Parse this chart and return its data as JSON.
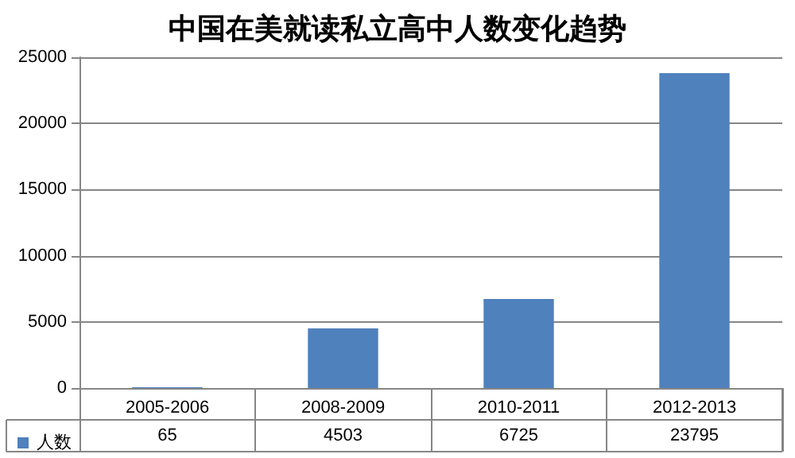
{
  "chart_data": {
    "type": "bar",
    "title": "中国在美就读私立高中人数变化趋势",
    "categories": [
      "2005-2006",
      "2008-2009",
      "2010-2011",
      "2012-2013"
    ],
    "series": [
      {
        "name": "人数",
        "color": "#4f81bd",
        "values": [
          65,
          4503,
          6725,
          23795
        ]
      }
    ],
    "ylim": [
      0,
      25000
    ],
    "yticks": [
      0,
      5000,
      10000,
      15000,
      20000,
      25000
    ],
    "grid": "y",
    "data_labels": true,
    "legend": "bottom left"
  }
}
